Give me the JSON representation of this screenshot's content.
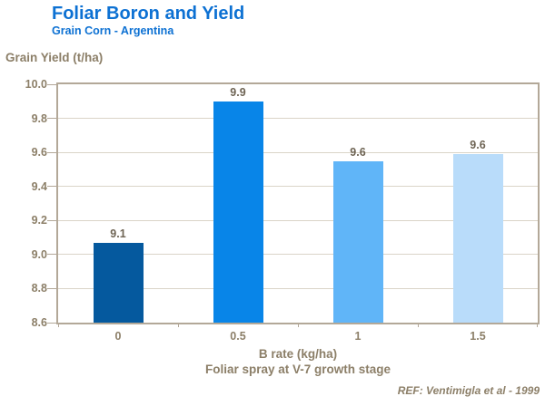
{
  "header": {
    "title": "Foliar Boron and Yield",
    "subtitle": "Grain Corn - Argentina"
  },
  "chart_data": {
    "type": "bar",
    "title": "Foliar Boron and Yield",
    "subtitle": "Grain Corn - Argentina",
    "categories": [
      "0",
      "0.5",
      "1",
      "1.5"
    ],
    "values": [
      9.1,
      9.9,
      9.6,
      9.6
    ],
    "bar_labels": [
      "9.1",
      "9.9",
      "9.6",
      "9.6"
    ],
    "plotted_values": [
      9.07,
      9.9,
      9.55,
      9.59
    ],
    "bar_colors": [
      "#05599e",
      "#0885e8",
      "#60b5f8",
      "#b9dcfa"
    ],
    "ylabel": "Grain Yield (t/ha)",
    "xlabel": "B rate (kg/ha)",
    "xlabel_note": "Foliar spray at V-7 growth stage",
    "ylim": [
      8.6,
      10.0
    ],
    "ytick_step": 0.2,
    "yticks": [
      "10.0",
      "9.8",
      "9.6",
      "9.4",
      "9.2",
      "9.0",
      "8.8",
      "8.6"
    ],
    "grid": true,
    "legend": "none",
    "reference": "REF: Ventimigla et al - 1999"
  },
  "colors": {
    "title_blue": "#0d71d3",
    "axis_text": "#8c7f68",
    "data_label_text": "#6e6454",
    "plot_border": "#b3a898",
    "gridline": "#dad4c8",
    "tick_mark": "#b3a898",
    "background": "#ffffff"
  }
}
